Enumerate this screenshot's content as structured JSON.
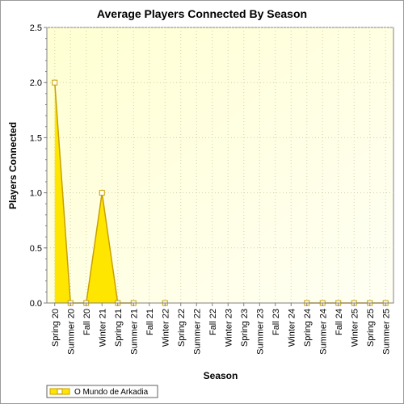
{
  "chart_data": {
    "type": "area",
    "title": "Average Players Connected By Season",
    "xlabel": "Season",
    "ylabel": "Players Connected",
    "ylim": [
      0,
      2.5
    ],
    "yticks": [
      "0.0",
      "0.5",
      "1.0",
      "1.5",
      "2.0",
      "2.5"
    ],
    "categories": [
      "Spring 20",
      "Summer 20",
      "Fall 20",
      "Winter 21",
      "Spring 21",
      "Summer 21",
      "Fall 21",
      "Winter 22",
      "Spring 22",
      "Summer 22",
      "Fall 22",
      "Winter 23",
      "Spring 23",
      "Summer 23",
      "Fall 23",
      "Winter 24",
      "Spring 24",
      "Summer 24",
      "Fall 24",
      "Winter 25",
      "Spring 25",
      "Summer 25"
    ],
    "series": [
      {
        "name": "O Mundo de Arkadia",
        "color": "#ffe600",
        "line_color": "#c8a000",
        "values": [
          2.0,
          0.0,
          0.0,
          1.0,
          0.0,
          0.0,
          null,
          0.0,
          null,
          null,
          null,
          null,
          null,
          null,
          null,
          null,
          0.0,
          0.0,
          0.0,
          0.0,
          0.0,
          0.0
        ]
      }
    ],
    "grid": true,
    "legend_position": "bottom-left"
  }
}
